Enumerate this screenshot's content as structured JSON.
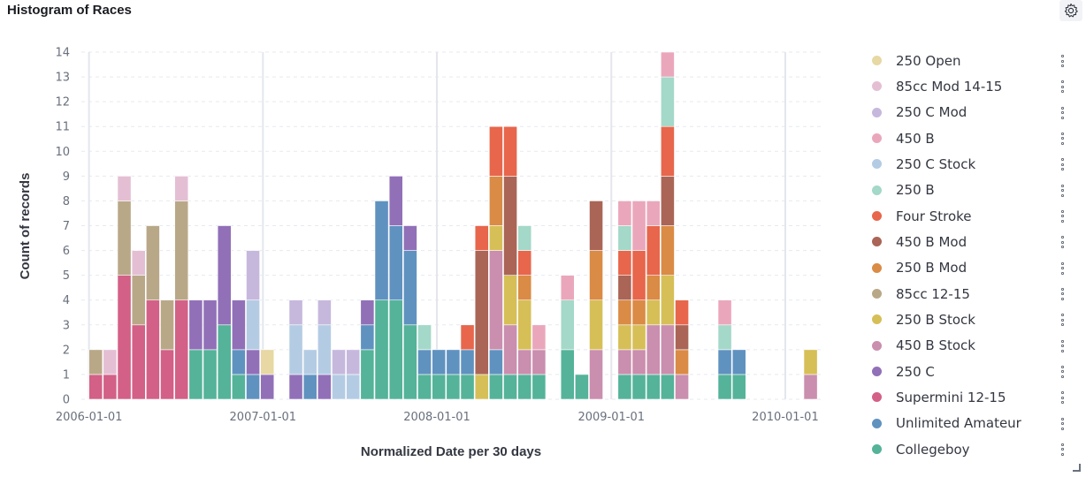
{
  "panel": {
    "title": "Histogram of Races",
    "settings_icon": "gear-icon"
  },
  "chart_data": {
    "type": "bar",
    "stacked": true,
    "title": "Histogram of Races",
    "xlabel": "Normalized Date per 30 days",
    "ylabel": "Count of records",
    "ylim": [
      0,
      14
    ],
    "yticks": [
      0,
      1,
      2,
      3,
      4,
      5,
      6,
      7,
      8,
      9,
      10,
      11,
      12,
      13,
      14
    ],
    "xticks": [
      "2006-01-01",
      "2007-01-01",
      "2008-01-01",
      "2009-01-01",
      "2010-01-01"
    ],
    "bin": "30 days",
    "legend_position": "right",
    "series": [
      {
        "name": "250 Open",
        "color": "#e7d8a4"
      },
      {
        "name": "85cc Mod 14-15",
        "color": "#e4bfd4"
      },
      {
        "name": "250 C Mod",
        "color": "#c6b8dd"
      },
      {
        "name": "450 B",
        "color": "#eaa7bb"
      },
      {
        "name": "250 C Stock",
        "color": "#b4cce3"
      },
      {
        "name": "250 B",
        "color": "#a4d8c8"
      },
      {
        "name": "Four Stroke",
        "color": "#e7664c"
      },
      {
        "name": "450 B Mod",
        "color": "#aa6556"
      },
      {
        "name": "250 B Mod",
        "color": "#da8b45"
      },
      {
        "name": "85cc 12-15",
        "color": "#b9a888"
      },
      {
        "name": "250 B Stock",
        "color": "#d6bf57"
      },
      {
        "name": "450 B Stock",
        "color": "#ca8eae"
      },
      {
        "name": "250 C",
        "color": "#9170b8"
      },
      {
        "name": "Supermini 12-15",
        "color": "#d36086"
      },
      {
        "name": "Unlimited Amateur",
        "color": "#6092c0"
      },
      {
        "name": "Collegeboy",
        "color": "#54b399"
      }
    ],
    "bins": [
      {
        "x": "2006-01-01",
        "stack": [
          [
            "Supermini 12-15",
            1
          ],
          [
            "85cc 12-15",
            1
          ]
        ]
      },
      {
        "x": "2006-01-31",
        "stack": [
          [
            "Supermini 12-15",
            1
          ],
          [
            "85cc Mod 14-15",
            1
          ]
        ]
      },
      {
        "x": "2006-03-02",
        "stack": [
          [
            "Supermini 12-15",
            5
          ],
          [
            "85cc 12-15",
            3
          ],
          [
            "85cc Mod 14-15",
            1
          ]
        ]
      },
      {
        "x": "2006-04-01",
        "stack": [
          [
            "Supermini 12-15",
            3
          ],
          [
            "85cc 12-15",
            2
          ],
          [
            "85cc Mod 14-15",
            1
          ]
        ]
      },
      {
        "x": "2006-05-01",
        "stack": [
          [
            "Supermini 12-15",
            4
          ],
          [
            "85cc 12-15",
            3
          ]
        ]
      },
      {
        "x": "2006-05-31",
        "stack": [
          [
            "Supermini 12-15",
            2
          ],
          [
            "85cc 12-15",
            2
          ]
        ]
      },
      {
        "x": "2006-06-30",
        "stack": [
          [
            "Supermini 12-15",
            4
          ],
          [
            "85cc 12-15",
            4
          ],
          [
            "85cc Mod 14-15",
            1
          ]
        ]
      },
      {
        "x": "2006-07-30",
        "stack": [
          [
            "Collegeboy",
            2
          ],
          [
            "250 C",
            2
          ]
        ]
      },
      {
        "x": "2006-08-29",
        "stack": [
          [
            "Collegeboy",
            2
          ],
          [
            "250 C",
            2
          ]
        ]
      },
      {
        "x": "2006-09-28",
        "stack": [
          [
            "Collegeboy",
            3
          ],
          [
            "250 C",
            4
          ]
        ]
      },
      {
        "x": "2006-10-28",
        "stack": [
          [
            "Collegeboy",
            1
          ],
          [
            "Unlimited Amateur",
            1
          ],
          [
            "250 C",
            2
          ]
        ]
      },
      {
        "x": "2006-11-27",
        "stack": [
          [
            "Unlimited Amateur",
            1
          ],
          [
            "250 C",
            1
          ],
          [
            "250 C Stock",
            2
          ],
          [
            "250 C Mod",
            2
          ]
        ]
      },
      {
        "x": "2006-12-27",
        "stack": [
          [
            "250 C",
            1
          ],
          [
            "250 Open",
            1
          ]
        ]
      },
      {
        "x": "2007-02-25",
        "stack": [
          [
            "250 C",
            1
          ],
          [
            "250 C Stock",
            2
          ],
          [
            "250 C Mod",
            1
          ]
        ]
      },
      {
        "x": "2007-03-27",
        "stack": [
          [
            "Unlimited Amateur",
            1
          ],
          [
            "250 C Stock",
            1
          ]
        ]
      },
      {
        "x": "2007-04-26",
        "stack": [
          [
            "250 C",
            1
          ],
          [
            "250 C Stock",
            2
          ],
          [
            "250 C Mod",
            1
          ]
        ]
      },
      {
        "x": "2007-05-26",
        "stack": [
          [
            "250 C Stock",
            1
          ],
          [
            "250 C Mod",
            1
          ]
        ]
      },
      {
        "x": "2007-06-25",
        "stack": [
          [
            "250 C Stock",
            1
          ],
          [
            "250 C Mod",
            1
          ]
        ]
      },
      {
        "x": "2007-07-25",
        "stack": [
          [
            "Collegeboy",
            2
          ],
          [
            "Unlimited Amateur",
            1
          ],
          [
            "250 C",
            1
          ]
        ]
      },
      {
        "x": "2007-08-24",
        "stack": [
          [
            "Collegeboy",
            4
          ],
          [
            "Unlimited Amateur",
            4
          ]
        ]
      },
      {
        "x": "2007-09-23",
        "stack": [
          [
            "Collegeboy",
            4
          ],
          [
            "Unlimited Amateur",
            3
          ],
          [
            "250 C",
            2
          ]
        ]
      },
      {
        "x": "2007-10-23",
        "stack": [
          [
            "Collegeboy",
            3
          ],
          [
            "Unlimited Amateur",
            3
          ],
          [
            "250 C",
            1
          ]
        ]
      },
      {
        "x": "2007-11-22",
        "stack": [
          [
            "Collegeboy",
            1
          ],
          [
            "Unlimited Amateur",
            1
          ],
          [
            "250 B",
            1
          ]
        ]
      },
      {
        "x": "2007-12-22",
        "stack": [
          [
            "Collegeboy",
            1
          ],
          [
            "Unlimited Amateur",
            1
          ]
        ]
      },
      {
        "x": "2008-01-21",
        "stack": [
          [
            "Collegeboy",
            1
          ],
          [
            "Unlimited Amateur",
            1
          ]
        ]
      },
      {
        "x": "2008-02-20",
        "stack": [
          [
            "Collegeboy",
            1
          ],
          [
            "Unlimited Amateur",
            1
          ],
          [
            "Four Stroke",
            1
          ]
        ]
      },
      {
        "x": "2008-03-21",
        "stack": [
          [
            "250 B Stock",
            1
          ],
          [
            "450 B Mod",
            5
          ],
          [
            "Four Stroke",
            1
          ]
        ]
      },
      {
        "x": "2008-04-20",
        "stack": [
          [
            "Collegeboy",
            1
          ],
          [
            "Unlimited Amateur",
            1
          ],
          [
            "450 B Stock",
            4
          ],
          [
            "250 B Stock",
            1
          ],
          [
            "250 B Mod",
            2
          ],
          [
            "Four Stroke",
            2
          ]
        ]
      },
      {
        "x": "2008-05-20",
        "stack": [
          [
            "Collegeboy",
            1
          ],
          [
            "450 B Stock",
            2
          ],
          [
            "250 B Stock",
            2
          ],
          [
            "450 B Mod",
            4
          ],
          [
            "Four Stroke",
            2
          ]
        ]
      },
      {
        "x": "2008-06-19",
        "stack": [
          [
            "Collegeboy",
            1
          ],
          [
            "450 B Stock",
            1
          ],
          [
            "250 B Stock",
            2
          ],
          [
            "250 B Mod",
            1
          ],
          [
            "Four Stroke",
            1
          ],
          [
            "250 B",
            1
          ]
        ]
      },
      {
        "x": "2008-07-19",
        "stack": [
          [
            "Collegeboy",
            1
          ],
          [
            "450 B Stock",
            1
          ],
          [
            "450 B",
            1
          ]
        ]
      },
      {
        "x": "2008-09-17",
        "stack": [
          [
            "Collegeboy",
            2
          ],
          [
            "250 B",
            2
          ],
          [
            "450 B",
            1
          ]
        ]
      },
      {
        "x": "2008-10-17",
        "stack": [
          [
            "Collegeboy",
            1
          ]
        ]
      },
      {
        "x": "2008-11-16",
        "stack": [
          [
            "450 B Stock",
            2
          ],
          [
            "250 B Stock",
            2
          ],
          [
            "250 B Mod",
            2
          ],
          [
            "450 B Mod",
            2
          ]
        ]
      },
      {
        "x": "2009-01-15",
        "stack": [
          [
            "Collegeboy",
            1
          ],
          [
            "450 B Stock",
            1
          ],
          [
            "250 B Stock",
            1
          ],
          [
            "250 B Mod",
            1
          ],
          [
            "450 B Mod",
            1
          ],
          [
            "Four Stroke",
            1
          ],
          [
            "250 B",
            1
          ],
          [
            "450 B",
            1
          ]
        ]
      },
      {
        "x": "2009-02-14",
        "stack": [
          [
            "Collegeboy",
            1
          ],
          [
            "450 B Stock",
            1
          ],
          [
            "250 B Stock",
            1
          ],
          [
            "250 B Mod",
            1
          ],
          [
            "Four Stroke",
            2
          ],
          [
            "450 B",
            2
          ]
        ]
      },
      {
        "x": "2009-03-16",
        "stack": [
          [
            "Collegeboy",
            1
          ],
          [
            "450 B Stock",
            2
          ],
          [
            "250 B Stock",
            1
          ],
          [
            "250 B Mod",
            1
          ],
          [
            "Four Stroke",
            2
          ],
          [
            "450 B",
            1
          ]
        ]
      },
      {
        "x": "2009-04-15",
        "stack": [
          [
            "Collegeboy",
            1
          ],
          [
            "450 B Stock",
            2
          ],
          [
            "250 B Stock",
            2
          ],
          [
            "250 B Mod",
            2
          ],
          [
            "450 B Mod",
            2
          ],
          [
            "Four Stroke",
            2
          ],
          [
            "250 B",
            2
          ],
          [
            "450 B",
            1
          ]
        ]
      },
      {
        "x": "2009-05-15",
        "stack": [
          [
            "450 B Stock",
            1
          ],
          [
            "250 B Mod",
            1
          ],
          [
            "450 B Mod",
            1
          ],
          [
            "Four Stroke",
            1
          ]
        ]
      },
      {
        "x": "2009-08-13",
        "stack": [
          [
            "Collegeboy",
            1
          ],
          [
            "Unlimited Amateur",
            1
          ],
          [
            "250 B",
            1
          ],
          [
            "450 B",
            1
          ]
        ]
      },
      {
        "x": "2009-09-12",
        "stack": [
          [
            "Collegeboy",
            1
          ],
          [
            "Unlimited Amateur",
            1
          ]
        ]
      },
      {
        "x": "2010-02-09",
        "stack": [
          [
            "450 B Stock",
            1
          ],
          [
            "250 B Stock",
            1
          ]
        ]
      }
    ]
  }
}
